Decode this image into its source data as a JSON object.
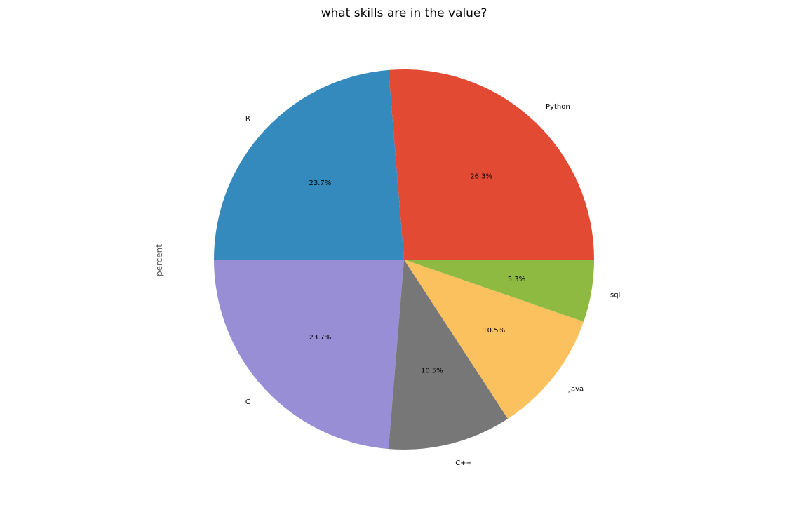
{
  "chart_data": {
    "type": "pie",
    "title": "what skills are in the value?",
    "ylabel": "percent",
    "categories": [
      "Python",
      "R",
      "C",
      "C++",
      "Java",
      "sql"
    ],
    "values": [
      26.3,
      23.7,
      23.7,
      10.5,
      10.5,
      5.3
    ],
    "percent_labels": [
      "26.3%",
      "23.7%",
      "23.7%",
      "10.5%",
      "10.5%",
      "5.3%"
    ],
    "colors": [
      "#E24A33",
      "#348ABD",
      "#988ED5",
      "#777777",
      "#FBC15E",
      "#8EBA42"
    ],
    "start_angle_deg": 0,
    "direction": "counterclockwise",
    "legend": "none"
  }
}
